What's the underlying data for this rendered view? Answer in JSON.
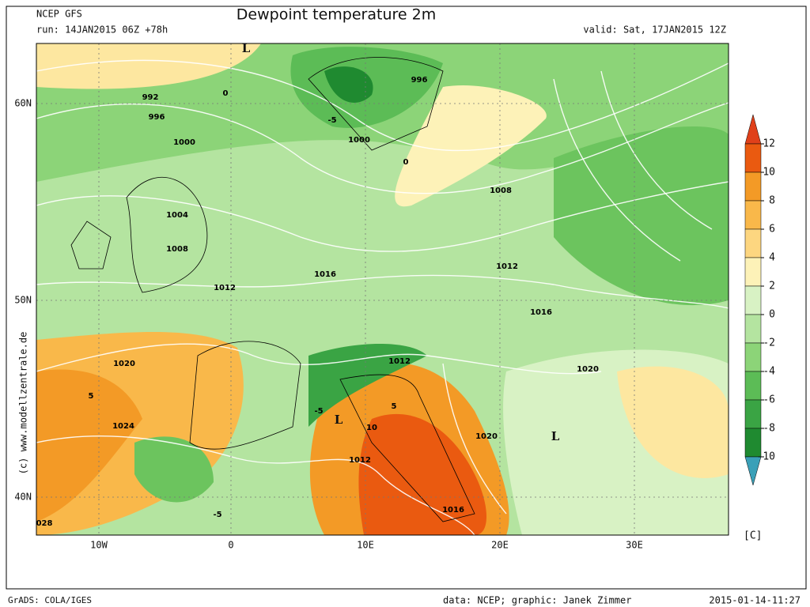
{
  "header": {
    "model": "NCEP GFS",
    "run": "run: 14JAN2015 06Z +78h",
    "title": "Dewpoint temperature 2m",
    "valid": "valid: Sat, 17JAN2015 12Z"
  },
  "map": {
    "lat_labels": [
      "60N",
      "50N",
      "40N"
    ],
    "lon_labels": [
      "10W",
      "0",
      "10E",
      "20E",
      "30E"
    ],
    "watermark": "(c)  www.modellzentrale.de",
    "contour_labels": [
      "992",
      "996",
      "1000",
      "1004",
      "1008",
      "1012",
      "1016",
      "1020",
      "1024",
      "028",
      "996",
      "1000",
      "1008",
      "1012",
      "1016",
      "1012",
      "1020",
      "1020",
      "1012",
      "1016",
      "-5",
      "0",
      "-5",
      "10",
      "5",
      "-5",
      "0",
      "5"
    ],
    "lows": [
      "L",
      "L",
      "L"
    ]
  },
  "colorbar": {
    "ticks": [
      12,
      10,
      8,
      6,
      4,
      2,
      0,
      -2,
      -4,
      -6,
      -8,
      -10
    ],
    "unit": "[C]"
  },
  "footer": {
    "left": "GrADS: COLA/IGES",
    "credits": "data: NCEP; graphic: Janek Zimmer",
    "timestamp": "2015-01-14-11:27"
  }
}
